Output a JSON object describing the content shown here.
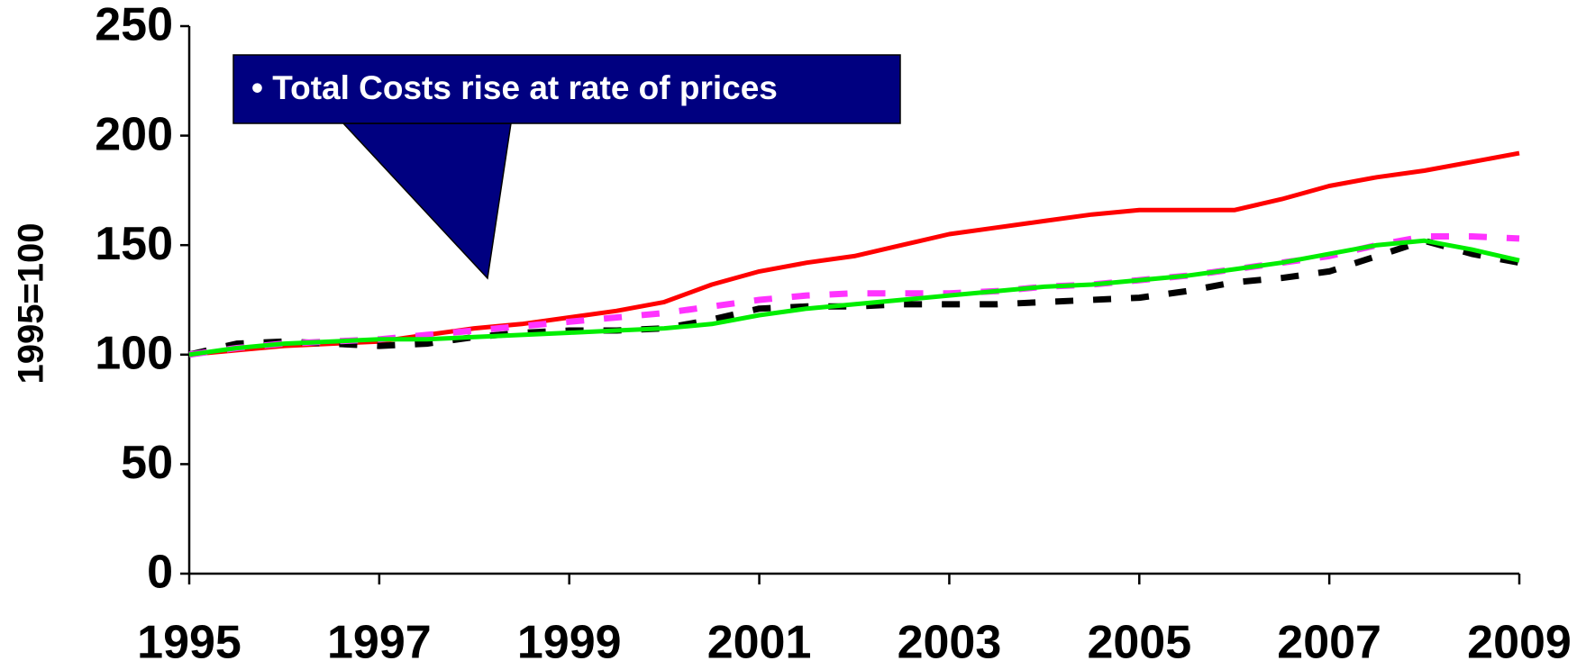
{
  "chart_data": {
    "type": "line",
    "y_label": "1995=100",
    "annotation": "• Total Costs rise at rate of prices",
    "x": [
      1995,
      1995.5,
      1996,
      1996.5,
      1997,
      1997.5,
      1998,
      1998.5,
      1999,
      1999.5,
      2000,
      2000.5,
      2001,
      2001.5,
      2002,
      2002.5,
      2003,
      2003.5,
      2004,
      2004.5,
      2005,
      2005.5,
      2006,
      2006.5,
      2007,
      2007.5,
      2008,
      2008.5,
      2009
    ],
    "series": [
      {
        "color": "#ff0000",
        "style": "solid",
        "values": [
          100,
          102,
          104,
          105,
          106,
          109,
          112,
          114,
          117,
          120,
          124,
          132,
          138,
          142,
          145,
          150,
          155,
          158,
          161,
          164,
          166,
          166,
          166,
          171,
          177,
          181,
          184,
          188,
          192
        ]
      },
      {
        "color": "#000000",
        "style": "dashed",
        "values": [
          100,
          105,
          106,
          105,
          104,
          105,
          108,
          110,
          111,
          111,
          112,
          116,
          121,
          122,
          122,
          123,
          123,
          123,
          124,
          125,
          126,
          129,
          133,
          135,
          138,
          145,
          152,
          146,
          142
        ]
      },
      {
        "color": "#ff33ff",
        "style": "dashed",
        "values": [
          100,
          103,
          105,
          106,
          107,
          109,
          111,
          113,
          115,
          117,
          119,
          122,
          125,
          127,
          128,
          128,
          128,
          129,
          131,
          132,
          134,
          136,
          139,
          142,
          145,
          150,
          154,
          154,
          153
        ]
      },
      {
        "color": "#00ee00",
        "style": "solid",
        "values": [
          100,
          103,
          105,
          106,
          107,
          107,
          108,
          109,
          110,
          111,
          112,
          114,
          118,
          121,
          123,
          125,
          127,
          129,
          131,
          132,
          134,
          136,
          139,
          142,
          146,
          150,
          152,
          148,
          143
        ]
      }
    ],
    "xlim": [
      1995,
      2009
    ],
    "xticks": [
      1995,
      1997,
      1999,
      2001,
      2003,
      2005,
      2007,
      2009
    ],
    "ylim": [
      0,
      250
    ],
    "yticks": [
      0,
      50,
      100,
      150,
      200,
      250
    ],
    "grid": false
  }
}
